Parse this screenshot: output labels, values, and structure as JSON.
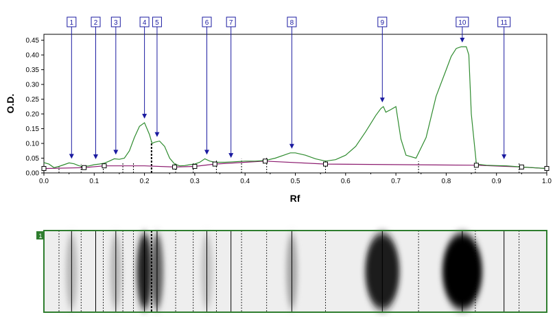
{
  "chart_data": {
    "type": "line",
    "xlabel": "Rf",
    "ylabel": "O.D.",
    "xlim": [
      0,
      1
    ],
    "ylim": [
      0,
      0.47
    ],
    "x_ticks": [
      "0.0",
      "0.1",
      "0.2",
      "0.3",
      "0.4",
      "0.5",
      "0.6",
      "0.7",
      "0.8",
      "0.9",
      "1.0"
    ],
    "y_ticks": [
      "0.00",
      "0.05",
      "0.10",
      "0.15",
      "0.20",
      "0.25",
      "0.30",
      "0.35",
      "0.40",
      "0.45"
    ],
    "x_tick_values": [
      0,
      0.1,
      0.2,
      0.3,
      0.4,
      0.5,
      0.6,
      0.7,
      0.8,
      0.9,
      1.0
    ],
    "y_tick_values": [
      0,
      0.05,
      0.1,
      0.15,
      0.2,
      0.25,
      0.3,
      0.35,
      0.4,
      0.45
    ],
    "grid": false,
    "series": [
      {
        "id": "profile",
        "color": "#2e8b2e",
        "x": [
          0.0,
          0.01,
          0.02,
          0.03,
          0.04,
          0.05,
          0.06,
          0.07,
          0.08,
          0.09,
          0.1,
          0.11,
          0.12,
          0.13,
          0.14,
          0.15,
          0.16,
          0.17,
          0.18,
          0.19,
          0.2,
          0.21,
          0.215,
          0.22,
          0.23,
          0.24,
          0.25,
          0.26,
          0.27,
          0.28,
          0.29,
          0.3,
          0.31,
          0.32,
          0.33,
          0.34,
          0.36,
          0.38,
          0.4,
          0.42,
          0.44,
          0.46,
          0.48,
          0.49,
          0.5,
          0.52,
          0.54,
          0.56,
          0.58,
          0.6,
          0.62,
          0.64,
          0.66,
          0.67,
          0.675,
          0.68,
          0.69,
          0.7,
          0.71,
          0.72,
          0.74,
          0.76,
          0.78,
          0.8,
          0.81,
          0.82,
          0.83,
          0.84,
          0.845,
          0.85,
          0.86,
          0.88,
          0.9,
          0.92,
          0.95,
          0.98,
          1.0
        ],
        "y": [
          0.035,
          0.03,
          0.018,
          0.022,
          0.028,
          0.034,
          0.031,
          0.024,
          0.022,
          0.024,
          0.028,
          0.03,
          0.033,
          0.04,
          0.048,
          0.046,
          0.05,
          0.075,
          0.12,
          0.158,
          0.17,
          0.13,
          0.1,
          0.104,
          0.108,
          0.09,
          0.05,
          0.03,
          0.024,
          0.025,
          0.028,
          0.03,
          0.036,
          0.048,
          0.04,
          0.036,
          0.036,
          0.038,
          0.04,
          0.04,
          0.042,
          0.05,
          0.062,
          0.068,
          0.068,
          0.06,
          0.048,
          0.04,
          0.045,
          0.06,
          0.09,
          0.14,
          0.195,
          0.218,
          0.225,
          0.206,
          0.215,
          0.225,
          0.115,
          0.06,
          0.05,
          0.12,
          0.26,
          0.35,
          0.395,
          0.422,
          0.428,
          0.428,
          0.4,
          0.2,
          0.03,
          0.026,
          0.025,
          0.024,
          0.02,
          0.017,
          0.015
        ]
      },
      {
        "id": "baseline",
        "color": "#8b1a6e",
        "x": [
          0.0,
          0.08,
          0.12,
          0.2,
          0.26,
          0.3,
          0.34,
          0.4,
          0.44,
          0.56,
          0.86,
          0.95,
          1.0
        ],
        "y": [
          0.015,
          0.018,
          0.024,
          0.024,
          0.02,
          0.022,
          0.03,
          0.036,
          0.04,
          0.03,
          0.026,
          0.02,
          0.015
        ]
      }
    ],
    "baseline_markers_x": [
      0.0,
      0.08,
      0.12,
      0.26,
      0.3,
      0.34,
      0.44,
      0.56,
      0.86,
      0.95,
      1.0
    ],
    "peaks": [
      {
        "label": "1",
        "rf": 0.055,
        "od": 0.034
      },
      {
        "label": "2",
        "rf": 0.103,
        "od": 0.028
      },
      {
        "label": "3",
        "rf": 0.143,
        "od": 0.048
      },
      {
        "label": "4",
        "rf": 0.2,
        "od": 0.17
      },
      {
        "label": "5",
        "rf": 0.225,
        "od": 0.108
      },
      {
        "label": "6",
        "rf": 0.324,
        "od": 0.048
      },
      {
        "label": "7",
        "rf": 0.372,
        "od": 0.037
      },
      {
        "label": "8",
        "rf": 0.493,
        "od": 0.068
      },
      {
        "label": "9",
        "rf": 0.673,
        "od": 0.225
      },
      {
        "label": "10",
        "rf": 0.832,
        "od": 0.428
      },
      {
        "label": "11",
        "rf": 0.915,
        "od": 0.025
      }
    ],
    "boundary_lines_rf": [
      0.03,
      0.074,
      0.118,
      0.157,
      0.178,
      0.214,
      0.262,
      0.297,
      0.343,
      0.393,
      0.443,
      0.56,
      0.745,
      0.858,
      0.945
    ],
    "bold_boundary_rf": 0.214
  },
  "strip": {
    "lane_label": "1",
    "bands": [
      {
        "rf": 0.055,
        "darkness": 0.22
      },
      {
        "rf": 0.143,
        "darkness": 0.22
      },
      {
        "rf": 0.2,
        "darkness": 0.85
      },
      {
        "rf": 0.225,
        "darkness": 0.6
      },
      {
        "rf": 0.324,
        "darkness": 0.18
      },
      {
        "rf": 0.493,
        "darkness": 0.3
      },
      {
        "rf": 0.673,
        "darkness": 0.88
      },
      {
        "rf": 0.832,
        "darkness": 1.0
      }
    ],
    "solid_lines_rf": [
      0.055,
      0.103,
      0.143,
      0.2,
      0.225,
      0.324,
      0.372,
      0.493,
      0.673,
      0.832,
      0.915
    ],
    "dashed_lines_rf": [
      0.03,
      0.074,
      0.118,
      0.157,
      0.178,
      0.262,
      0.297,
      0.343,
      0.393,
      0.443,
      0.56,
      0.745,
      0.858,
      0.945
    ],
    "bold_dashed_rf": 0.214,
    "border_color": "#2e7d2e"
  }
}
